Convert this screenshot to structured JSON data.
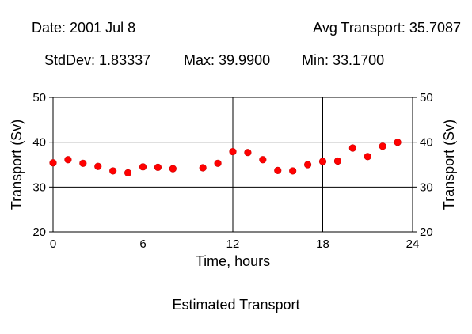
{
  "stats": {
    "date": {
      "label": "Date",
      "value": "2001 Jul 8"
    },
    "avg": {
      "label": "Avg Transport",
      "value": "35.7087"
    },
    "stddev": {
      "label": "StdDev",
      "value": "1.83337"
    },
    "max": {
      "label": "Max",
      "value": "39.9900"
    },
    "min": {
      "label": "Min",
      "value": "33.1700"
    }
  },
  "chart_data": {
    "type": "scatter",
    "title": "Estimated Transport",
    "xlabel": "Time, hours",
    "ylabel": "Transport (Sv)",
    "ylabel_right": "Transport (Sv)",
    "xlim": [
      0,
      24
    ],
    "ylim": [
      20,
      50
    ],
    "xticks": [
      0,
      6,
      12,
      18,
      24
    ],
    "yticks": [
      20,
      30,
      40,
      50
    ],
    "grid": true,
    "marker_color": "#ff0000",
    "x": [
      0,
      1,
      2,
      3,
      4,
      5,
      6,
      7,
      8,
      10,
      11,
      12,
      13,
      14,
      15,
      16,
      17,
      18,
      19,
      20,
      21,
      22,
      23
    ],
    "y": [
      35.4,
      36.1,
      35.3,
      34.6,
      33.6,
      33.17,
      34.5,
      34.4,
      34.1,
      34.3,
      35.3,
      37.9,
      37.7,
      36.1,
      33.7,
      33.6,
      35.0,
      35.7,
      35.8,
      38.7,
      36.8,
      39.1,
      39.99
    ]
  }
}
